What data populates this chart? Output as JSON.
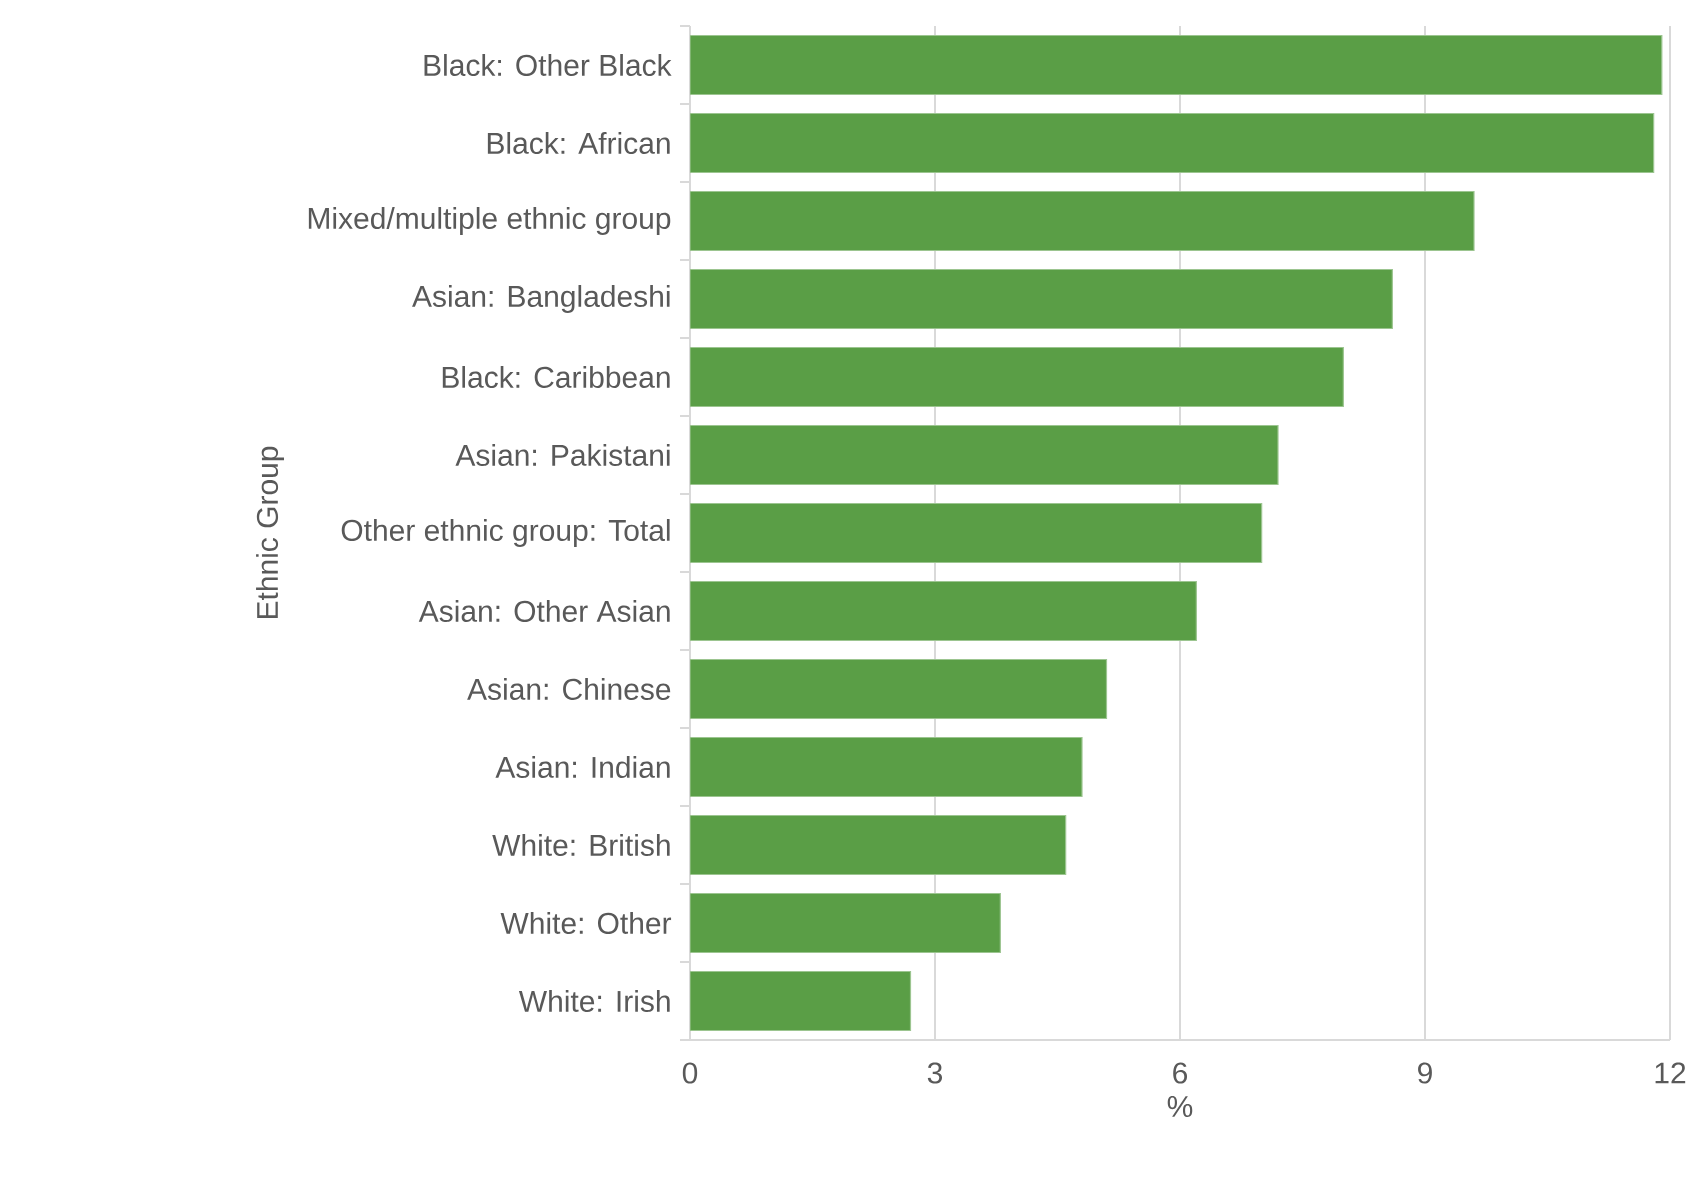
{
  "chart_data": {
    "type": "bar",
    "orientation": "horizontal",
    "ylabel": "Ethnic Group",
    "xlabel": "%",
    "categories": [
      "Black: Other Black",
      "Black: African",
      "Mixed/multiple ethnic group",
      "Asian: Bangladeshi",
      "Black: Caribbean",
      "Asian: Pakistani",
      "Other ethnic group: Total",
      "Asian: Other Asian",
      "Asian: Chinese",
      "Asian: Indian",
      "White: British",
      "White: Other",
      "White: Irish"
    ],
    "values": [
      11.9,
      11.8,
      9.6,
      8.6,
      8.0,
      7.2,
      7.0,
      6.2,
      5.1,
      4.8,
      4.6,
      3.8,
      2.7
    ],
    "color": "#5a9e46",
    "xlim": [
      0,
      12
    ],
    "xticks": [
      0,
      3,
      6,
      9,
      12
    ],
    "grid": "x"
  }
}
